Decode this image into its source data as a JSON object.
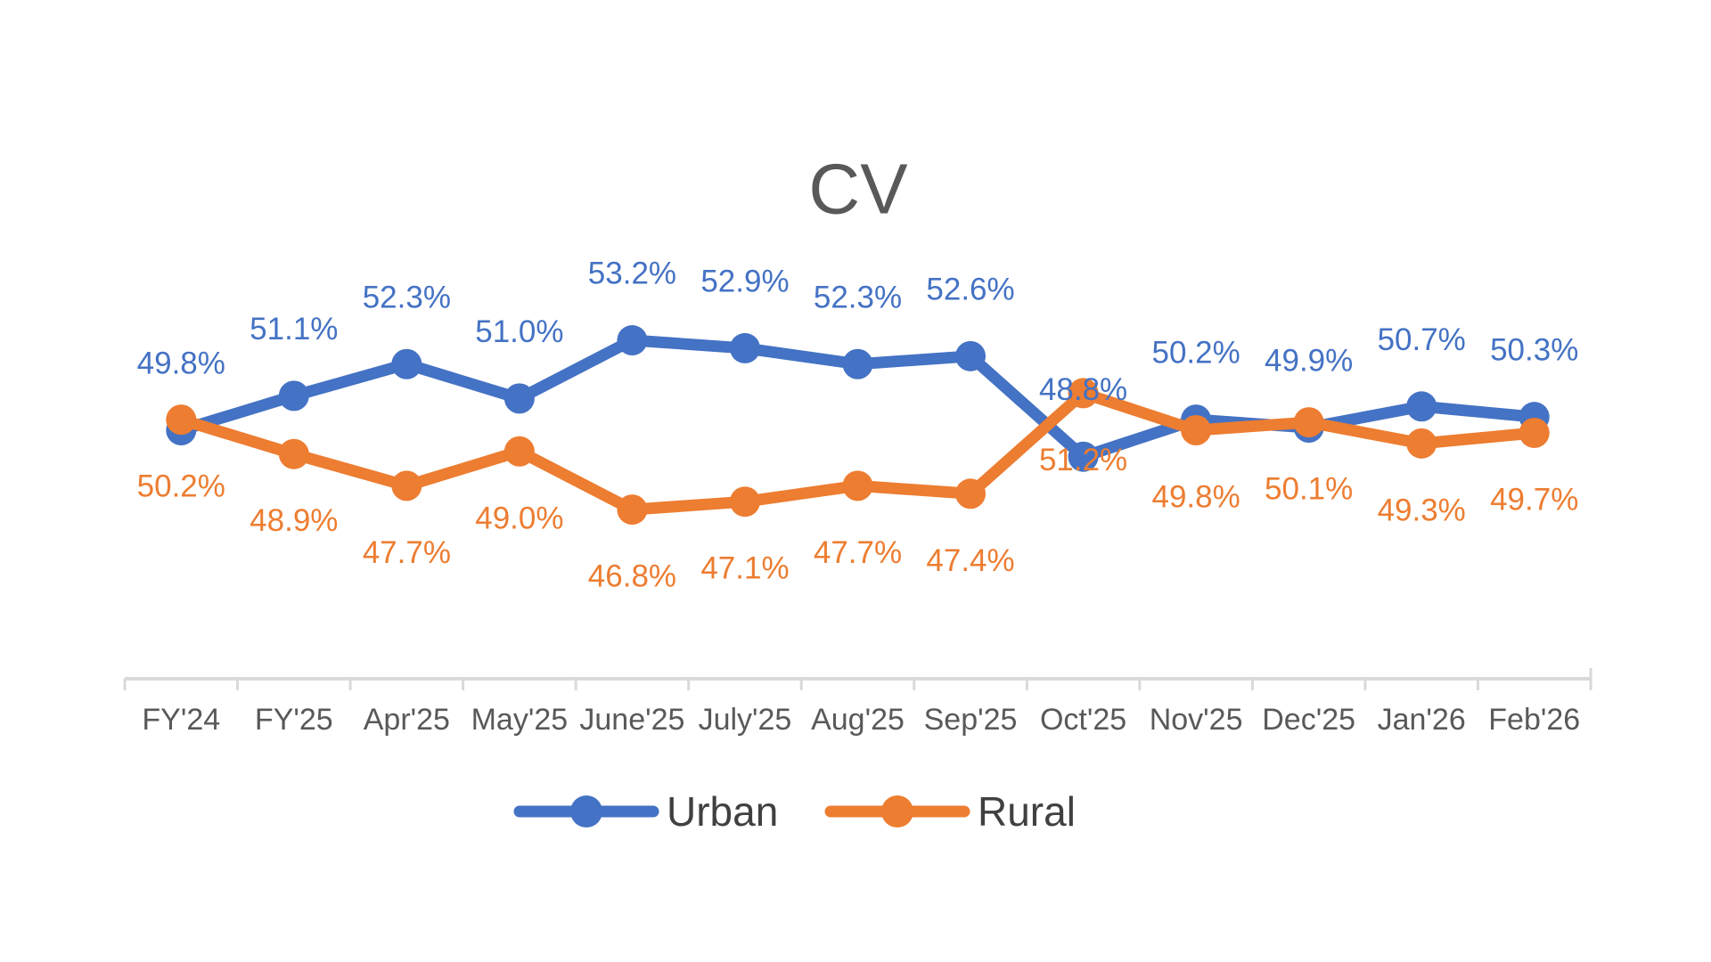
{
  "page": {
    "background": "#FFFFFF"
  },
  "chart_data": {
    "type": "line",
    "title": "CV",
    "title_color": "#595959",
    "categories": [
      "FY'24",
      "FY'25",
      "Apr'25",
      "May'25",
      "June'25",
      "July'25",
      "Aug'25",
      "Sep'25",
      "Oct'25",
      "Nov'25",
      "Dec'25",
      "Jan'26",
      "Feb'26"
    ],
    "series": [
      {
        "name": "Urban",
        "color": "#4472C4",
        "label_position": "above",
        "values": [
          49.8,
          51.1,
          52.3,
          51.0,
          53.2,
          52.9,
          52.3,
          52.6,
          48.8,
          50.2,
          49.9,
          50.7,
          50.3
        ]
      },
      {
        "name": "Rural",
        "color": "#ED7D31",
        "label_position": "below",
        "values": [
          50.2,
          48.9,
          47.7,
          49.0,
          46.8,
          47.1,
          47.7,
          47.4,
          51.2,
          49.8,
          50.1,
          49.3,
          49.7
        ]
      }
    ],
    "data_labels": {
      "visible": true,
      "format": "0.0%"
    },
    "x_axis": {
      "line_color": "#D9D9D9",
      "label_color": "#595959",
      "tick_marks": "outside"
    },
    "y_axis": {
      "visible": false
    },
    "grid": false,
    "legend": {
      "position": "bottom",
      "items": [
        "Urban",
        "Rural"
      ],
      "text_color": "#404040"
    }
  }
}
